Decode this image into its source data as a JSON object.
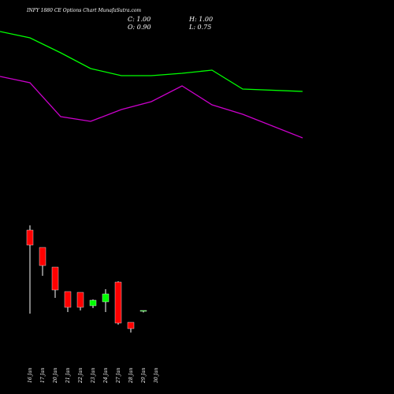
{
  "title": "INFY 1880  CE Options Chart MunafaSutra.com",
  "ohlc": {
    "close": "C: 1.00",
    "high": "H: 1.00",
    "open": "O: 0.90",
    "low": "L: 0.75"
  },
  "colors": {
    "background": "#000000",
    "up": "#00ff00",
    "down": "#ff0000",
    "wick": "#ffffff",
    "upper_line": "#00ff00",
    "lower_line": "#cc00cc",
    "text": "#ffffff"
  },
  "chart_data": {
    "type": "candlestick",
    "categories": [
      "16 Jan",
      "17 Jan",
      "20 Jan",
      "21 Jan",
      "22 Jan",
      "23 Jan",
      "24 Jan",
      "27 Jan",
      "28 Jan",
      "29 Jan",
      "30 Jan"
    ],
    "candles": [
      {
        "date": "16 Jan",
        "open": 11.2,
        "high": 11.8,
        "low": 0.6,
        "close": 9.3,
        "dir": "down"
      },
      {
        "date": "17 Jan",
        "open": 9.0,
        "high": 9.0,
        "low": 5.4,
        "close": 6.7,
        "dir": "down"
      },
      {
        "date": "20 Jan",
        "open": 6.5,
        "high": 6.5,
        "low": 2.6,
        "close": 3.6,
        "dir": "down"
      },
      {
        "date": "21 Jan",
        "open": 3.4,
        "high": 3.4,
        "low": 0.8,
        "close": 1.4,
        "dir": "down"
      },
      {
        "date": "22 Jan",
        "open": 3.3,
        "high": 3.3,
        "low": 1.0,
        "close": 1.4,
        "dir": "down"
      },
      {
        "date": "23 Jan",
        "open": 1.6,
        "high": 2.4,
        "low": 1.3,
        "close": 2.3,
        "dir": "up"
      },
      {
        "date": "24 Jan",
        "open": 2.1,
        "high": 3.7,
        "low": 0.8,
        "close": 3.1,
        "dir": "up"
      },
      {
        "date": "27 Jan",
        "open": 4.6,
        "high": 4.7,
        "low": -0.8,
        "close": -0.6,
        "dir": "down"
      },
      {
        "date": "28 Jan",
        "open": -0.5,
        "high": -0.5,
        "low": -1.8,
        "close": -1.3,
        "dir": "down"
      },
      {
        "date": "29 Jan",
        "open": 0.9,
        "high": 1.0,
        "low": 0.75,
        "close": 1.0,
        "dir": "up"
      }
    ],
    "upper_band": [
      {
        "x": "16 Jan",
        "y": 36.4
      },
      {
        "x": "20 Jan",
        "y": 35.6
      },
      {
        "x": "22 Jan",
        "y": 33.7
      },
      {
        "x": "24 Jan",
        "y": 31.7
      },
      {
        "x": "27 Jan",
        "y": 30.8
      },
      {
        "x": "28 Jan",
        "y": 30.8
      },
      {
        "x": "29 Jan",
        "y": 31.1
      },
      {
        "x": "30 Jan",
        "y": 31.5
      },
      {
        "x": "31 Jan",
        "y": 29.1
      },
      {
        "x": "03 Feb",
        "y": 28.8
      }
    ],
    "lower_band": [
      {
        "x": "16 Jan",
        "y": 30.7
      },
      {
        "x": "20 Jan",
        "y": 29.9
      },
      {
        "x": "22 Jan",
        "y": 25.6
      },
      {
        "x": "24 Jan",
        "y": 25.0
      },
      {
        "x": "27 Jan",
        "y": 26.5
      },
      {
        "x": "28 Jan",
        "y": 27.5
      },
      {
        "x": "29 Jan",
        "y": 29.5
      },
      {
        "x": "30 Jan",
        "y": 27.1
      },
      {
        "x": "31 Jan",
        "y": 25.9
      },
      {
        "x": "03 Feb",
        "y": 22.9
      }
    ]
  }
}
